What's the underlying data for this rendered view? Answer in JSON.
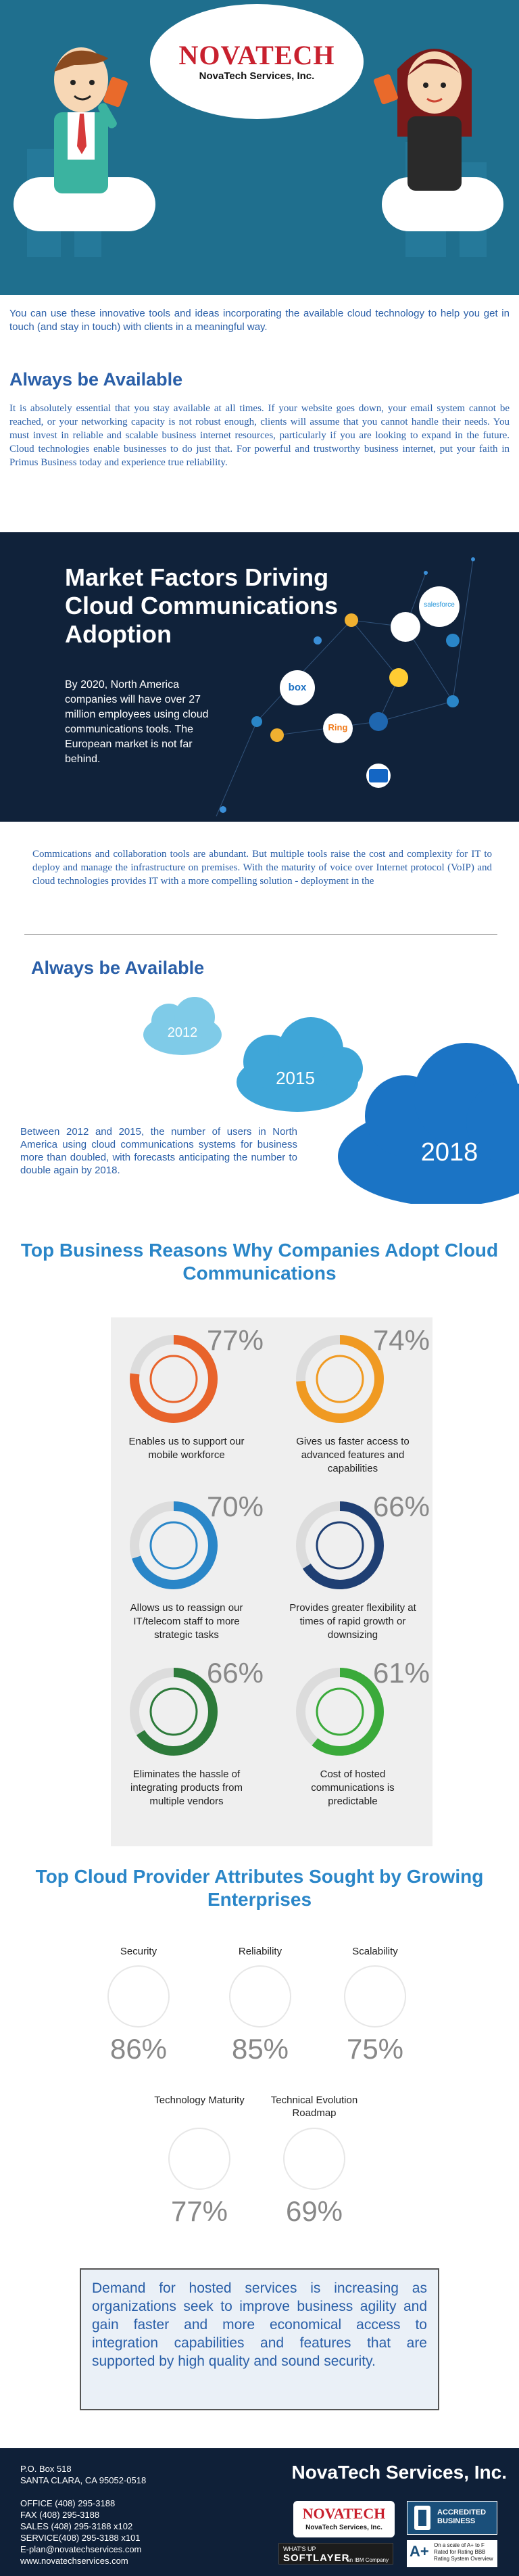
{
  "header": {
    "logo_word": "NOVATECH",
    "logo_sub": "NovaTech Services, Inc."
  },
  "intro": "You can use these innovative tools and ideas incorporating the available cloud technology to help you get in touch (and stay in touch) with clients in a meaningful way.",
  "avail1": {
    "heading": "Always be Available",
    "body": "It is absolutely essential that you stay available at all times. If your website goes down, your email system cannot be reached, or your networking capacity is not robust enough, clients will assume that you cannot handle their needs. You must invest in reliable and scalable business internet resources, particularly if you are looking to expand in the future. Cloud technologies enable businesses to do just that. For powerful and trustworthy business internet, put your faith in Primus Business today and experience true reliability."
  },
  "market": {
    "title": "Market Factors Driving Cloud Communications Adoption",
    "body": "By 2020, North America companies will have over 27 million employees using cloud communications tools. The European market is not far behind.",
    "logos": [
      "box",
      "Ring",
      "salesforce"
    ]
  },
  "collab": "Commications and collaboration tools are abundant. But multiple tools raise the cost and complexity for IT to deploy and manage the infrastructure on premises. With the maturity of voice over Internet protocol (VoIP) and cloud technologies provides IT with a more compelling solution - deployment in the",
  "avail2": {
    "heading": "Always be Available",
    "years": [
      "2012",
      "2015",
      "2018"
    ],
    "body": "Between 2012 and 2015, the number of users in North America using cloud communications systems for business more than doubled, with forecasts anticipating the number to double again by 2018."
  },
  "reasons": {
    "heading": "Top Business Reasons Why Companies Adopt Cloud Communications",
    "items": [
      {
        "pct": "77%",
        "caption": "Enables us to support our mobile workforce",
        "color": "#e8632b",
        "value": 77
      },
      {
        "pct": "74%",
        "caption": "Gives us faster access to advanced features and capabilities",
        "color": "#f09a22",
        "value": 74
      },
      {
        "pct": "70%",
        "caption": "Allows us to reassign our IT/telecom staff to more strategic tasks",
        "color": "#2a86c8",
        "value": 70
      },
      {
        "pct": "66%",
        "caption": "Provides greater flexibility at times of rapid growth or downsizing",
        "color": "#1f3f73",
        "value": 66
      },
      {
        "pct": "66%",
        "caption": "Eliminates the hassle of integrating products from multiple vendors",
        "color": "#2d7a3a",
        "value": 66
      },
      {
        "pct": "61%",
        "caption": "Cost of hosted communications is predictable",
        "color": "#3aaa3a",
        "value": 61
      }
    ]
  },
  "attributes": {
    "heading": "Top Cloud Provider Attributes Sought by Growing Enterprises",
    "items": [
      {
        "label": "Security",
        "pct": "86%",
        "icon": "lock-icon"
      },
      {
        "label": "Reliability",
        "pct": "85%",
        "icon": "checklist-icon"
      },
      {
        "label": "Scalability",
        "pct": "75%",
        "icon": "expand-icon"
      },
      {
        "label": "Technology Maturity",
        "pct": "77%",
        "icon": "rocket-icon"
      },
      {
        "label": "Technical Evolution Roadmap",
        "pct": "69%",
        "icon": "roadmap-icon"
      }
    ]
  },
  "demand": "Demand for hosted services is increasing as organizations seek to improve business agility and gain faster and more economical access to integration capabilities and features that are supported by high quality and sound security.",
  "footer": {
    "company": "NovaTech Services, Inc.",
    "lines": [
      "P.O. Box 518",
      "SANTA CLARA, CA 95052-0518",
      "",
      "OFFICE  (408) 295-3188",
      "FAX (408) 295-3188",
      "SALES   (408) 295-3188 x102",
      "SERVICE(408) 295-3188 x101",
      "E-plan@novatechservices.com",
      "www.novatechservices.com"
    ],
    "logo_word": "NOVATECH",
    "logo_sub": "NovaTech Services, Inc.",
    "softlayer_top": "WHAT'S UP",
    "softlayer_name": "SOFTLAYER",
    "softlayer_sub": "an IBM Company",
    "bbb_accredited": "ACCREDITED BUSINESS",
    "bbb_rating": "A+",
    "bbb_rating_text": "On a scale of A+ to F Rated for Rating BBB Rating System Overview"
  }
}
